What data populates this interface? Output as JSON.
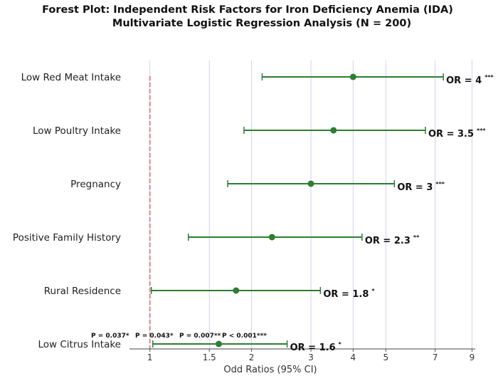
{
  "chart_data": {
    "type": "forest",
    "title": "Forest Plot: Independent Risk Factors for Iron Deficiency Anemia (IDA)",
    "subtitle": "Multivariate Logistic Regression Analysis (N = 200)",
    "xlabel": "Odd Ratios (95% CI)",
    "x_scale": "log",
    "xlim": [
      0.87,
      9.2
    ],
    "x_ticks": [
      {
        "value": 1,
        "label": "1"
      },
      {
        "value": 1.5,
        "label": "1.5"
      },
      {
        "value": 2,
        "label": "2"
      },
      {
        "value": 3,
        "label": "3"
      },
      {
        "value": 4,
        "label": "4"
      },
      {
        "value": 5,
        "label": "5"
      },
      {
        "value": 7,
        "label": "7"
      },
      {
        "value": 9,
        "label": "9"
      }
    ],
    "reference_line": 1,
    "grid": true,
    "colors": {
      "marker": "#2e7d32",
      "reference": "#d9898b",
      "grid": "#cfd3ea"
    },
    "rows": [
      {
        "label": "Low Red Meat Intake",
        "or": 4,
        "ci": [
          2.15,
          7.4
        ],
        "or_label": "OR = 4",
        "sig": "***"
      },
      {
        "label": "Low Poultry Intake",
        "or": 3.5,
        "ci": [
          1.9,
          6.55
        ],
        "or_label": "OR = 3.5",
        "sig": "***"
      },
      {
        "label": "Pregnancy",
        "or": 3,
        "ci": [
          1.7,
          5.3
        ],
        "or_label": "OR = 3",
        "sig": "***"
      },
      {
        "label": "Positive Family History",
        "or": 2.3,
        "ci": [
          1.3,
          4.25
        ],
        "or_label": "OR = 2.3",
        "sig": "**"
      },
      {
        "label": "Rural Residence",
        "or": 1.8,
        "ci": [
          1.01,
          3.2
        ],
        "or_label": "OR = 1.8",
        "sig": "*"
      },
      {
        "label": "Low Citrus Intake",
        "or": 1.6,
        "ci": [
          1.02,
          2.55
        ],
        "or_label": "OR = 1.6",
        "sig": "*"
      }
    ],
    "p_value_notes": [
      "P = 0.037*",
      "P = 0.043*",
      "P = 0.007**",
      "P < 0.001***"
    ]
  }
}
